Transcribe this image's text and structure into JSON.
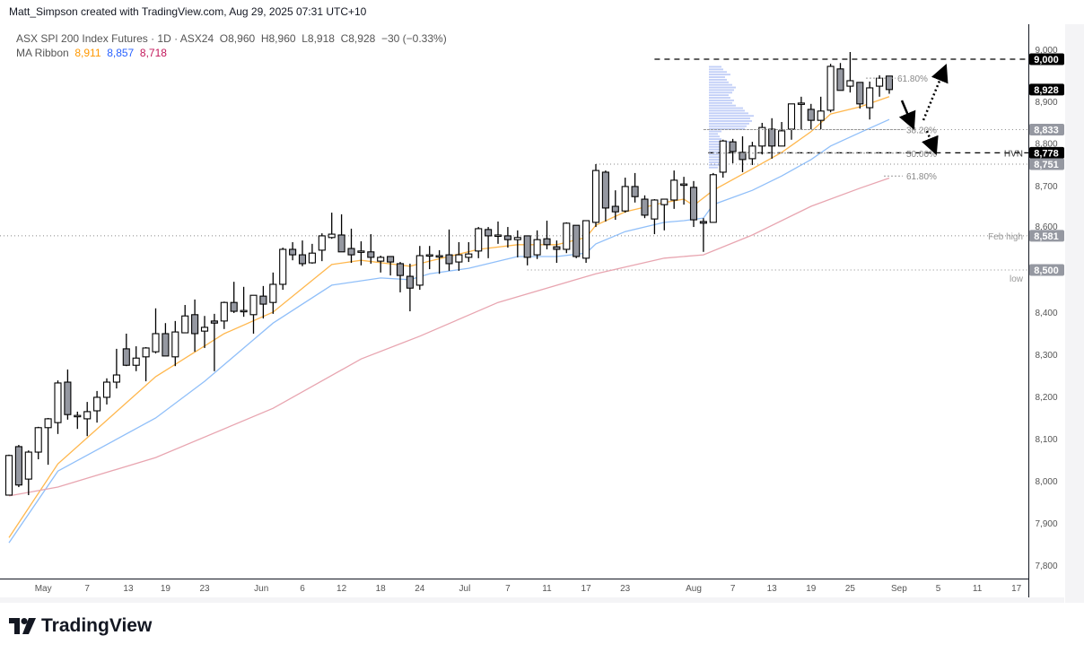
{
  "credit": "Matt_Simpson created with TradingView.com, Aug 29, 2025 07:31 UTC+10",
  "legend": {
    "symbol": "ASX SPI 200 Index Futures · 1D · ASX24",
    "open": "O8,960",
    "high": "H8,960",
    "low": "L8,918",
    "close": "C8,928",
    "change": "−30 (−0.33%)",
    "ma_label": "MA Ribbon",
    "ma_values": [
      "8,911",
      "8,857",
      "8,718"
    ]
  },
  "colors": {
    "ma_fast": "#ffb74d",
    "ma_mid": "#90bff9",
    "ma_slow": "#e8a5b0",
    "down_body": "#9598a1",
    "up_body": "#ffffff",
    "profile": "#90a8f0"
  },
  "logo": {
    "text": "TradingView"
  },
  "chart_data": {
    "type": "candlestick",
    "title": "ASX SPI 200 Index Futures · 1D · ASX24",
    "ylim": [
      7780,
      9070
    ],
    "y_ticks": [
      "9,000",
      "8,900",
      "8,800",
      "8,700",
      "8,600",
      "8,400",
      "8,300",
      "8,200",
      "8,100",
      "8,000",
      "7,900",
      "7,800"
    ],
    "y_tick_values": [
      9000,
      8900,
      8800,
      8700,
      8600,
      8400,
      8300,
      8200,
      8100,
      8000,
      7900,
      7800
    ],
    "x_ticks": [
      "5",
      "May",
      "7",
      "13",
      "19",
      "23",
      "Jun",
      "6",
      "12",
      "18",
      "24",
      "Jul",
      "7",
      "11",
      "17",
      "23",
      "Aug",
      "7",
      "13",
      "19",
      "25",
      "Sep",
      "5",
      "11",
      "17"
    ],
    "x_tick_index": [
      -3.5,
      3.5,
      8,
      12.2,
      16,
      20,
      25.8,
      30,
      34,
      38,
      42,
      46.6,
      51,
      55,
      59,
      63,
      70,
      74,
      78,
      82,
      86,
      91,
      95,
      99,
      103
    ],
    "candles": [
      [
        7966,
        8062,
        7966,
        8060
      ],
      [
        8081,
        8085,
        7985,
        7990
      ],
      [
        8004,
        8072,
        7966,
        8068
      ],
      [
        8068,
        8128,
        8051,
        8126
      ],
      [
        8126,
        8149,
        8038,
        8147
      ],
      [
        8138,
        8238,
        8111,
        8232
      ],
      [
        8234,
        8264,
        8145,
        8157
      ],
      [
        8155,
        8164,
        8123,
        8155
      ],
      [
        8147,
        8187,
        8106,
        8164
      ],
      [
        8166,
        8213,
        8138,
        8198
      ],
      [
        8198,
        8243,
        8181,
        8234
      ],
      [
        8234,
        8313,
        8219,
        8251
      ],
      [
        8313,
        8349,
        8272,
        8274
      ],
      [
        8274,
        8319,
        8260,
        8291
      ],
      [
        8294,
        8317,
        8236,
        8315
      ],
      [
        8306,
        8409,
        8302,
        8349
      ],
      [
        8349,
        8374,
        8296,
        8296
      ],
      [
        8294,
        8379,
        8272,
        8353
      ],
      [
        8351,
        8417,
        8351,
        8391
      ],
      [
        8394,
        8430,
        8306,
        8349
      ],
      [
        8355,
        8391,
        8315,
        8364
      ],
      [
        8379,
        8396,
        8260,
        8374
      ],
      [
        8379,
        8425,
        8360,
        8423
      ],
      [
        8423,
        8472,
        8398,
        8402
      ],
      [
        8402,
        8460,
        8389,
        8404
      ],
      [
        8394,
        8440,
        8349,
        8440
      ],
      [
        8438,
        8462,
        8385,
        8419
      ],
      [
        8423,
        8494,
        8396,
        8466
      ],
      [
        8466,
        8553,
        8453,
        8549
      ],
      [
        8549,
        8566,
        8523,
        8536
      ],
      [
        8536,
        8570,
        8509,
        8515
      ],
      [
        8517,
        8562,
        8515,
        8540
      ],
      [
        8547,
        8587,
        8521,
        8581
      ],
      [
        8577,
        8636,
        8574,
        8585
      ],
      [
        8583,
        8632,
        8543,
        8543
      ],
      [
        8551,
        8598,
        8517,
        8536
      ],
      [
        8545,
        8568,
        8511,
        8545
      ],
      [
        8543,
        8585,
        8515,
        8530
      ],
      [
        8521,
        8534,
        8494,
        8530
      ],
      [
        8532,
        8532,
        8487,
        8519
      ],
      [
        8515,
        8519,
        8447,
        8487
      ],
      [
        8485,
        8515,
        8402,
        8457
      ],
      [
        8464,
        8557,
        8453,
        8534
      ],
      [
        8536,
        8557,
        8502,
        8536
      ],
      [
        8534,
        8547,
        8491,
        8534
      ],
      [
        8536,
        8596,
        8498,
        8515
      ],
      [
        8519,
        8566,
        8498,
        8536
      ],
      [
        8530,
        8566,
        8519,
        8538
      ],
      [
        8545,
        8602,
        8528,
        8598
      ],
      [
        8596,
        8602,
        8528,
        8581
      ],
      [
        8583,
        8615,
        8562,
        8583
      ],
      [
        8581,
        8602,
        8553,
        8572
      ],
      [
        8572,
        8594,
        8530,
        8577
      ],
      [
        8581,
        8581,
        8511,
        8530
      ],
      [
        8536,
        8594,
        8526,
        8572
      ],
      [
        8574,
        8617,
        8549,
        8560
      ],
      [
        8555,
        8570,
        8517,
        8549
      ],
      [
        8549,
        8613,
        8540,
        8611
      ],
      [
        8606,
        8606,
        8528,
        8532
      ],
      [
        8528,
        8617,
        8517,
        8617
      ],
      [
        8613,
        8751,
        8602,
        8736
      ],
      [
        8732,
        8736,
        8615,
        8647
      ],
      [
        8651,
        8689,
        8619,
        8638
      ],
      [
        8640,
        8719,
        8636,
        8698
      ],
      [
        8698,
        8730,
        8660,
        8674
      ],
      [
        8668,
        8677,
        8623,
        8630
      ],
      [
        8621,
        8668,
        8585,
        8666
      ],
      [
        8655,
        8668,
        8594,
        8668
      ],
      [
        8666,
        8736,
        8645,
        8713
      ],
      [
        8704,
        8721,
        8655,
        8704
      ],
      [
        8696,
        8711,
        8602,
        8619
      ],
      [
        8615,
        8623,
        8543,
        8611
      ],
      [
        8613,
        8730,
        8613,
        8726
      ],
      [
        8732,
        8809,
        8719,
        8806
      ],
      [
        8804,
        8811,
        8753,
        8781
      ],
      [
        8779,
        8817,
        8732,
        8762
      ],
      [
        8764,
        8804,
        8749,
        8794
      ],
      [
        8794,
        8849,
        8774,
        8838
      ],
      [
        8834,
        8860,
        8764,
        8794
      ],
      [
        8794,
        8851,
        8794,
        8830
      ],
      [
        8834,
        8894,
        8809,
        8894
      ],
      [
        8894,
        8911,
        8834,
        8896
      ],
      [
        8881,
        8894,
        8834,
        8855
      ],
      [
        8855,
        8911,
        8834,
        8877
      ],
      [
        8879,
        8989,
        8874,
        8983
      ],
      [
        8977,
        8991,
        8926,
        8926
      ],
      [
        8936,
        9017,
        8921,
        8949
      ],
      [
        8945,
        8945,
        8883,
        8894
      ],
      [
        8885,
        8947,
        8857,
        8932
      ],
      [
        8936,
        8962,
        8911,
        8955
      ],
      [
        8960,
        8960,
        8918,
        8928
      ]
    ],
    "ma_series": [
      {
        "name": "MA Ribbon 8,911",
        "idx": [
          0,
          5,
          15,
          22,
          27,
          33,
          36,
          41,
          43,
          48,
          52,
          56,
          59,
          60,
          63,
          67,
          69,
          70,
          72,
          76,
          79,
          82,
          84,
          87,
          90
        ],
        "values": [
          7865,
          8040,
          8247,
          8349,
          8400,
          8513,
          8523,
          8509,
          8521,
          8549,
          8560,
          8560,
          8577,
          8606,
          8638,
          8660,
          8668,
          8653,
          8689,
          8740,
          8779,
          8828,
          8870,
          8887,
          8911
        ]
      },
      {
        "name": "MA Ribbon 8,857",
        "idx": [
          0,
          5,
          15,
          20,
          27,
          33,
          38,
          41,
          43,
          47,
          52,
          56,
          59,
          60,
          63,
          67,
          69,
          71,
          72,
          76,
          79,
          82,
          84,
          87,
          90
        ],
        "values": [
          7853,
          8023,
          8149,
          8236,
          8374,
          8464,
          8481,
          8477,
          8491,
          8504,
          8532,
          8532,
          8540,
          8562,
          8591,
          8613,
          8617,
          8623,
          8655,
          8689,
          8723,
          8762,
          8794,
          8826,
          8857
        ]
      },
      {
        "name": "MA Ribbon 8,718",
        "idx": [
          0,
          5,
          15,
          27,
          36,
          42,
          50,
          60,
          67,
          71,
          76,
          82,
          87,
          90
        ],
        "values": [
          7964,
          7985,
          8055,
          8172,
          8289,
          8343,
          8423,
          8491,
          8528,
          8536,
          8583,
          8651,
          8694,
          8718
        ]
      }
    ],
    "levels": [
      {
        "price": 9000,
        "style": "dashed",
        "from_idx": 66,
        "label": "",
        "badge": "9,000",
        "badge_color": "#000000"
      },
      {
        "price": 8778,
        "style": "dashed",
        "from_idx": 71.5,
        "label": "HVN",
        "badge": "8,778",
        "badge_color": "#000000"
      },
      {
        "price": 8833,
        "style": "dotted",
        "from_idx": 71,
        "label": "",
        "badge": "8,833",
        "badge_color": "#9598a1"
      },
      {
        "price": 8751,
        "style": "dotted",
        "from_idx": 60,
        "label": "",
        "badge": "8,751",
        "badge_color": "#9598a1"
      },
      {
        "price": 8581,
        "style": "dotted",
        "from_idx": -1,
        "label": "Feb high",
        "badge": "8,581",
        "badge_color": "#9598a1"
      },
      {
        "price": 8500,
        "style": "dotted",
        "from_idx": 53,
        "label": "low",
        "badge": "8,500",
        "badge_color": "#9598a1"
      }
    ],
    "last_price": {
      "price": 8928,
      "badge": "8,928"
    },
    "fib_levels": [
      {
        "price": 8955,
        "label": "61.80%"
      },
      {
        "price": 8833,
        "label": "38.20%"
      },
      {
        "price": 8777,
        "label": "50.00%"
      },
      {
        "price": 8723,
        "label": "61.80%"
      }
    ],
    "volume_profile": [
      10,
      14,
      16,
      15,
      18,
      14,
      12,
      16,
      20,
      18,
      22,
      14,
      12,
      10,
      14,
      40,
      42,
      45,
      48,
      46,
      50,
      44,
      40,
      38,
      30,
      26,
      28,
      24,
      22,
      26,
      28,
      30,
      26,
      22,
      20,
      18,
      24,
      20,
      16,
      14
    ],
    "volume_profile_range": [
      8740,
      8985
    ]
  }
}
